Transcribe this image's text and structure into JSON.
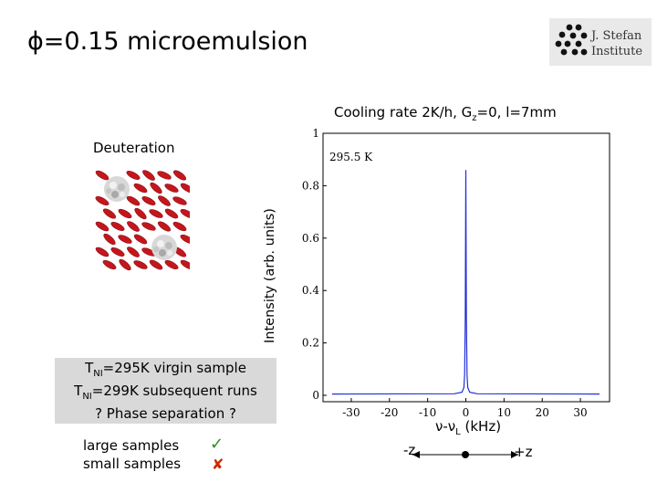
{
  "slide": {
    "title": "ϕ=0.15 microemulsion",
    "logo_line1": "J. Stefan",
    "logo_line2": "Institute"
  },
  "left_panel": {
    "deuteration_label": "Deuteration",
    "info_lines": [
      {
        "prefix": "T",
        "sub": "NI",
        "rest": "=295K virgin sample"
      },
      {
        "prefix": "T",
        "sub": "NI",
        "rest": "=299K subsequent runs"
      },
      {
        "text": "? Phase separation ?"
      }
    ],
    "samples": [
      {
        "label": "large samples",
        "mark": "✓"
      },
      {
        "label": "small samples",
        "mark": "✘"
      }
    ]
  },
  "axis_arrow": {
    "minus_label": "-z",
    "plus_label": "+z"
  },
  "colors": {
    "spectrum_line": "#1f2fd6",
    "molecule_red": "#c4161c",
    "info_box_bg": "#d9d9d9",
    "logo_bg": "#e9e9e9"
  },
  "chart_data": {
    "type": "line",
    "title": "Cooling rate 2K/h, Gz=0, l=7mm",
    "title_parts": {
      "pre": "Cooling rate 2K/h, G",
      "sub": "z",
      "post": "=0, l=7mm"
    },
    "ylabel": "Intensity (arb. units)",
    "xlabel_parts": {
      "pre": "ν-ν",
      "sub": "L",
      "post": " (kHz)"
    },
    "annotation": "295.5 K",
    "xlim": [
      -35,
      35
    ],
    "ylim": [
      0,
      1
    ],
    "x_ticks": [
      -30,
      -20,
      -10,
      0,
      10,
      20,
      30
    ],
    "y_ticks": [
      0,
      0.2,
      0.4,
      0.6,
      0.8,
      1
    ],
    "y_tick_labels": [
      "0",
      "0.2",
      "0.4",
      "0.6",
      "0.8",
      "1"
    ],
    "grid": false,
    "series": [
      {
        "x": [
          -35,
          -3,
          -1,
          -0.5,
          -0.3,
          -0.15,
          0,
          0.15,
          0.3,
          0.5,
          1,
          3,
          35
        ],
        "y": [
          0.005,
          0.006,
          0.012,
          0.03,
          0.08,
          0.3,
          0.86,
          0.3,
          0.08,
          0.03,
          0.012,
          0.006,
          0.005
        ]
      }
    ]
  }
}
